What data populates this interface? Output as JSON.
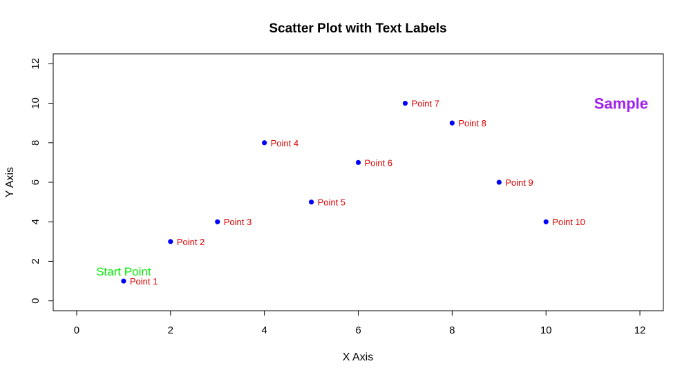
{
  "chart_data": {
    "type": "scatter",
    "title": "Scatter Plot with Text Labels",
    "xlabel": "X Axis",
    "ylabel": "Y Axis",
    "xlim": [
      -0.5,
      12.5
    ],
    "ylim": [
      -0.5,
      12.5
    ],
    "xticks": [
      0,
      2,
      4,
      6,
      8,
      10,
      12
    ],
    "yticks": [
      0,
      2,
      4,
      6,
      8,
      10,
      12
    ],
    "grid": false,
    "point_color": "#0000ff",
    "label_color": "#dd0000",
    "points": [
      {
        "x": 1,
        "y": 1,
        "label": "Point 1"
      },
      {
        "x": 2,
        "y": 3,
        "label": "Point 2"
      },
      {
        "x": 3,
        "y": 4,
        "label": "Point 3"
      },
      {
        "x": 4,
        "y": 8,
        "label": "Point 4"
      },
      {
        "x": 5,
        "y": 5,
        "label": "Point 5"
      },
      {
        "x": 6,
        "y": 7,
        "label": "Point 6"
      },
      {
        "x": 7,
        "y": 10,
        "label": "Point 7"
      },
      {
        "x": 8,
        "y": 9,
        "label": "Point 8"
      },
      {
        "x": 9,
        "y": 6,
        "label": "Point 9"
      },
      {
        "x": 10,
        "y": 4,
        "label": "Point 10"
      }
    ],
    "annotations": [
      {
        "x": 1,
        "y": 1.5,
        "text": "Start Point",
        "color": "#00ee00",
        "style": "start"
      },
      {
        "x": 11.6,
        "y": 10,
        "text": "Sample",
        "color": "#a020f0",
        "style": "sample"
      }
    ]
  }
}
